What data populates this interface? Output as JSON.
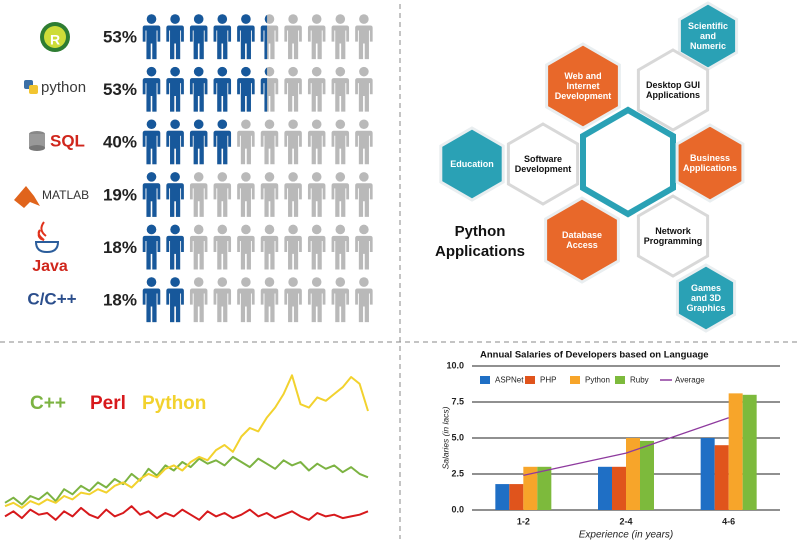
{
  "chart_data": [
    {
      "type": "pictogram",
      "categories": [
        "R",
        "python",
        "SQL",
        "MATLAB",
        "Java",
        "C/C++"
      ],
      "values": [
        53,
        53,
        40,
        19,
        18,
        18
      ],
      "value_labels": [
        "53%",
        "53%",
        "40%",
        "19%",
        "18%",
        "18%"
      ],
      "xlim": [
        0,
        100
      ],
      "color": "#17589b",
      "empty_color": "#b9b9b9"
    },
    {
      "type": "line",
      "series": [
        {
          "name": "C++",
          "color": "#7cb342",
          "values": [
            16,
            19,
            15,
            20,
            18,
            22,
            17,
            24,
            21,
            26,
            23,
            28,
            25,
            30,
            27,
            33,
            29,
            36,
            32,
            38,
            35,
            40,
            37,
            42,
            39,
            41,
            38,
            43,
            40,
            37,
            42,
            39,
            36,
            41,
            38,
            40,
            35,
            39,
            36,
            38,
            34,
            37,
            33,
            31
          ]
        },
        {
          "name": "Perl",
          "color": "#d7191c",
          "values": [
            8,
            11,
            7,
            12,
            9,
            10,
            6,
            11,
            8,
            13,
            9,
            7,
            12,
            8,
            10,
            14,
            9,
            11,
            7,
            10,
            8,
            12,
            9,
            6,
            11,
            8,
            10,
            7,
            9,
            12,
            8,
            10,
            7,
            9,
            11,
            8,
            6,
            10,
            8,
            9,
            7,
            8,
            9,
            11
          ]
        },
        {
          "name": "Python",
          "color": "#f2d22e",
          "values": [
            14,
            16,
            13,
            17,
            15,
            18,
            16,
            20,
            18,
            22,
            21,
            24,
            22,
            26,
            28,
            25,
            30,
            33,
            31,
            36,
            38,
            35,
            40,
            43,
            41,
            47,
            50,
            46,
            55,
            60,
            58,
            66,
            72,
            80,
            91,
            74,
            72,
            78,
            76,
            80,
            84,
            90,
            86,
            70
          ]
        }
      ],
      "ylim": [
        0,
        100
      ]
    },
    {
      "type": "bar",
      "title": "Annual Salaries of Developers based on Language",
      "categories": [
        "1-2",
        "2-4",
        "4-6"
      ],
      "series": [
        {
          "name": "ASPNet",
          "color": "#1f6fc5",
          "values": [
            1.8,
            3,
            5
          ]
        },
        {
          "name": "PHP",
          "color": "#e0541c",
          "values": [
            1.8,
            3,
            4.5
          ]
        },
        {
          "name": "Python",
          "color": "#f7a52a",
          "values": [
            3,
            5,
            8.1
          ]
        },
        {
          "name": "Ruby",
          "color": "#7dba3c",
          "values": [
            3,
            4.8,
            8
          ]
        },
        {
          "name": "Average",
          "color": "#8e3a9e",
          "type": "line",
          "values": [
            2.4,
            3.95,
            6.4
          ]
        }
      ],
      "ylim": [
        0,
        10
      ],
      "yticks": [
        {
          "value": 0,
          "label": "0.0"
        },
        {
          "value": 2.5,
          "label": "2.5"
        },
        {
          "value": 5,
          "label": "5.0"
        },
        {
          "value": 7.5,
          "label": "7.5"
        },
        {
          "value": 10,
          "label": "10.0"
        }
      ],
      "x_label": "Experience (in years)",
      "y_label": "Salaries (in lacs)",
      "grid": true,
      "legend": "top"
    }
  ],
  "diagram": {
    "title": "Python Applications",
    "nodes": [
      {
        "label": "Scientific and Numeric"
      },
      {
        "label": "Web and Internet Development"
      },
      {
        "label": "Desktop GUI Applications"
      },
      {
        "label": "Education"
      },
      {
        "label": "Software Development"
      },
      {
        "label": "Business Applications"
      },
      {
        "label": "Database Access"
      },
      {
        "label": "Network Programming"
      },
      {
        "label": "Games and 3D Graphics"
      }
    ]
  }
}
